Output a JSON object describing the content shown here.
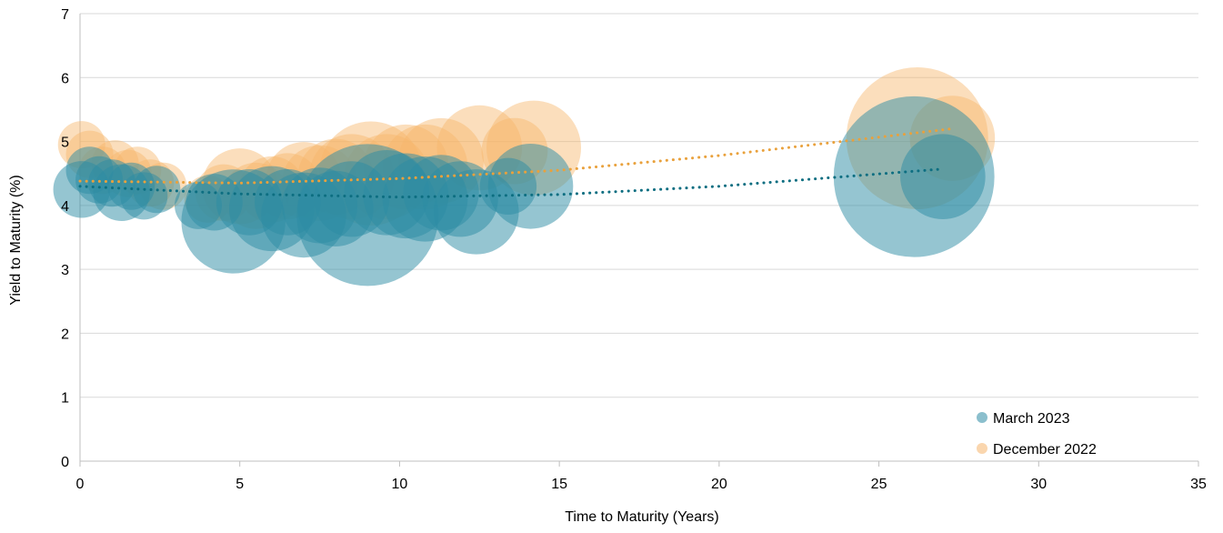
{
  "chart_data": {
    "type": "scatter",
    "title": "",
    "xlabel": "Time to Maturity (Years)",
    "ylabel": "Yield to Maturity (%)",
    "xlim": [
      0,
      35
    ],
    "ylim": [
      0,
      7
    ],
    "x_ticks": [
      "0",
      "5",
      "10",
      "15",
      "20",
      "25",
      "30",
      "35"
    ],
    "y_ticks": [
      "0",
      "1",
      "2",
      "3",
      "4",
      "5",
      "6",
      "7"
    ],
    "grid": "horizontal",
    "legend": "bottom-right",
    "series": [
      {
        "name": "March 2023",
        "color": "#2b8ba4",
        "trend_color": "#0d6e81",
        "points": [
          {
            "x": 0.05,
            "y": 4.25,
            "size": 0.6
          },
          {
            "x": 0.3,
            "y": 4.55,
            "size": 0.5
          },
          {
            "x": 0.6,
            "y": 4.4,
            "size": 0.5
          },
          {
            "x": 1.0,
            "y": 4.35,
            "size": 0.5
          },
          {
            "x": 1.3,
            "y": 4.2,
            "size": 0.6
          },
          {
            "x": 1.6,
            "y": 4.3,
            "size": 0.5
          },
          {
            "x": 2.0,
            "y": 4.15,
            "size": 0.5
          },
          {
            "x": 2.4,
            "y": 4.25,
            "size": 0.5
          },
          {
            "x": 3.7,
            "y": 4.0,
            "size": 0.5
          },
          {
            "x": 4.2,
            "y": 4.05,
            "size": 0.6
          },
          {
            "x": 4.8,
            "y": 3.75,
            "size": 1.1
          },
          {
            "x": 5.3,
            "y": 4.05,
            "size": 0.7
          },
          {
            "x": 6.0,
            "y": 3.95,
            "size": 0.9
          },
          {
            "x": 6.5,
            "y": 4.05,
            "size": 0.7
          },
          {
            "x": 7.0,
            "y": 3.85,
            "size": 0.9
          },
          {
            "x": 7.5,
            "y": 4.0,
            "size": 0.8
          },
          {
            "x": 8.0,
            "y": 3.95,
            "size": 0.8
          },
          {
            "x": 8.5,
            "y": 4.1,
            "size": 0.8
          },
          {
            "x": 9.0,
            "y": 3.85,
            "size": 1.5
          },
          {
            "x": 9.6,
            "y": 4.2,
            "size": 0.9
          },
          {
            "x": 10.2,
            "y": 4.15,
            "size": 0.9
          },
          {
            "x": 10.8,
            "y": 4.1,
            "size": 0.9
          },
          {
            "x": 11.3,
            "y": 4.2,
            "size": 0.8
          },
          {
            "x": 11.9,
            "y": 4.1,
            "size": 0.8
          },
          {
            "x": 12.4,
            "y": 3.9,
            "size": 0.9
          },
          {
            "x": 13.4,
            "y": 4.3,
            "size": 0.6
          },
          {
            "x": 14.1,
            "y": 4.3,
            "size": 0.9
          },
          {
            "x": 26.1,
            "y": 4.45,
            "size": 1.7
          },
          {
            "x": 27.0,
            "y": 4.45,
            "size": 0.9
          }
        ],
        "trend": [
          {
            "x": 0,
            "y": 4.3
          },
          {
            "x": 5,
            "y": 4.18
          },
          {
            "x": 10,
            "y": 4.13
          },
          {
            "x": 15,
            "y": 4.17
          },
          {
            "x": 20,
            "y": 4.3
          },
          {
            "x": 27,
            "y": 4.57
          }
        ]
      },
      {
        "name": "December 2022",
        "color": "#f6b56b",
        "trend_color": "#e9a13c",
        "points": [
          {
            "x": 0.05,
            "y": 4.95,
            "size": 0.5
          },
          {
            "x": 0.3,
            "y": 4.8,
            "size": 0.5
          },
          {
            "x": 0.7,
            "y": 4.55,
            "size": 0.5
          },
          {
            "x": 1.1,
            "y": 4.65,
            "size": 0.5
          },
          {
            "x": 1.5,
            "y": 4.5,
            "size": 0.5
          },
          {
            "x": 1.8,
            "y": 4.55,
            "size": 0.5
          },
          {
            "x": 2.2,
            "y": 4.35,
            "size": 0.5
          },
          {
            "x": 2.6,
            "y": 4.3,
            "size": 0.5
          },
          {
            "x": 4.0,
            "y": 4.1,
            "size": 0.5
          },
          {
            "x": 4.5,
            "y": 4.2,
            "size": 0.6
          },
          {
            "x": 5.0,
            "y": 4.3,
            "size": 0.8
          },
          {
            "x": 5.5,
            "y": 4.15,
            "size": 0.7
          },
          {
            "x": 6.0,
            "y": 4.25,
            "size": 0.7
          },
          {
            "x": 6.5,
            "y": 4.3,
            "size": 0.7
          },
          {
            "x": 7.0,
            "y": 4.4,
            "size": 0.8
          },
          {
            "x": 7.5,
            "y": 4.35,
            "size": 0.8
          },
          {
            "x": 8.0,
            "y": 4.45,
            "size": 0.8
          },
          {
            "x": 8.5,
            "y": 4.45,
            "size": 0.9
          },
          {
            "x": 9.1,
            "y": 4.5,
            "size": 1.1
          },
          {
            "x": 9.6,
            "y": 4.45,
            "size": 0.9
          },
          {
            "x": 10.2,
            "y": 4.6,
            "size": 0.9
          },
          {
            "x": 10.8,
            "y": 4.6,
            "size": 0.9
          },
          {
            "x": 11.3,
            "y": 4.7,
            "size": 0.9
          },
          {
            "x": 12.5,
            "y": 4.9,
            "size": 0.9
          },
          {
            "x": 13.6,
            "y": 4.85,
            "size": 0.7
          },
          {
            "x": 14.2,
            "y": 4.9,
            "size": 1.0
          },
          {
            "x": 26.2,
            "y": 5.05,
            "size": 1.5
          },
          {
            "x": 27.3,
            "y": 5.05,
            "size": 0.9
          }
        ],
        "trend": [
          {
            "x": 0,
            "y": 4.38
          },
          {
            "x": 5,
            "y": 4.35
          },
          {
            "x": 10,
            "y": 4.42
          },
          {
            "x": 15,
            "y": 4.55
          },
          {
            "x": 20,
            "y": 4.78
          },
          {
            "x": 27.3,
            "y": 5.2
          }
        ]
      }
    ]
  }
}
